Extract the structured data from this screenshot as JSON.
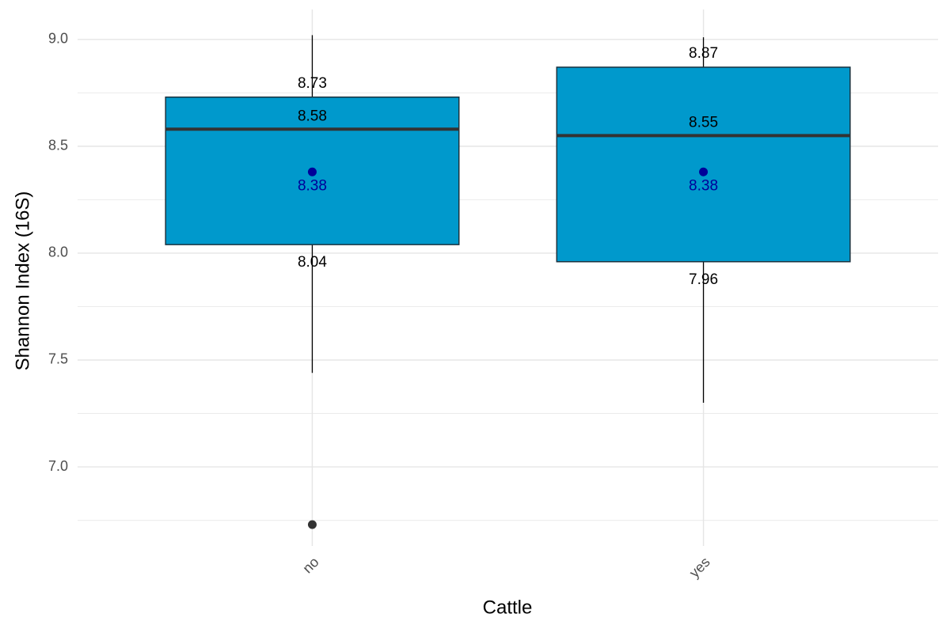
{
  "chart_data": {
    "type": "box",
    "x_label": "Cattle",
    "y_label": "Shannon Index (16S)",
    "categories": [
      "no",
      "yes"
    ],
    "whisker_low": [
      7.44,
      7.3
    ],
    "q1": [
      8.04,
      7.96
    ],
    "median": [
      8.58,
      8.55
    ],
    "q3": [
      8.73,
      8.87
    ],
    "whisker_high": [
      9.02,
      9.01
    ],
    "mean": [
      8.38,
      8.38
    ],
    "outliers": [
      [
        6.73
      ],
      []
    ],
    "color": "#0099cc",
    "mean_color": "#000099",
    "outlier_color": "#333333",
    "ylim": [
      6.63,
      9.14
    ],
    "yticks": [
      {
        "value": 7,
        "label": "7.0"
      },
      7.5,
      {
        "value": 8,
        "label": "8.0"
      },
      8.5,
      {
        "value": 9,
        "label": "9.0"
      }
    ],
    "minor_yticks": [
      6.75,
      7.25,
      7.75,
      8.25,
      8.75
    ],
    "grid": true
  }
}
